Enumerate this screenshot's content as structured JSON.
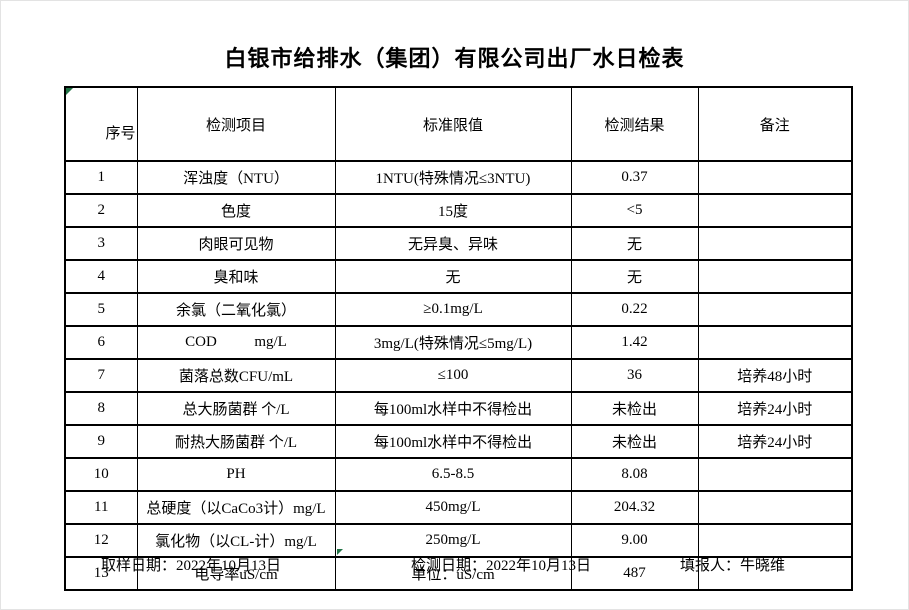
{
  "title": "白银市给排水（集团）有限公司出厂水日检表",
  "table": {
    "headers": [
      "序号",
      "检测项目",
      "标准限值",
      "检测结果",
      "备注"
    ],
    "rows": [
      [
        "1",
        "浑浊度（NTU）",
        "1NTU(特殊情况≤3NTU)",
        "0.37",
        ""
      ],
      [
        "2",
        "色度",
        "15度",
        "<5",
        ""
      ],
      [
        "3",
        "肉眼可见物",
        "无异臭、异味",
        "无",
        ""
      ],
      [
        "4",
        "臭和味",
        "无",
        "无",
        ""
      ],
      [
        "5",
        "余氯（二氧化氯）",
        "≥0.1mg/L",
        "0.22",
        ""
      ],
      [
        "6",
        "COD          mg/L",
        "3mg/L(特殊情况≤5mg/L)",
        "1.42",
        ""
      ],
      [
        "7",
        "菌落总数CFU/mL",
        "≤100",
        "36",
        "培养48小时"
      ],
      [
        "8",
        "总大肠菌群 个/L",
        "每100ml水样中不得检出",
        "未检出",
        "培养24小时"
      ],
      [
        "9",
        "耐热大肠菌群 个/L",
        "每100ml水样中不得检出",
        "未检出",
        "培养24小时"
      ],
      [
        "10",
        "PH",
        "6.5-8.5",
        "8.08",
        ""
      ],
      [
        "11",
        "总硬度（以CaCo3计）mg/L",
        "450mg/L",
        "204.32",
        ""
      ],
      [
        "12",
        "氯化物（以CL-计）mg/L",
        "250mg/L",
        "9.00",
        ""
      ],
      [
        "13",
        "电导率uS/cm",
        "单位：uS/cm",
        "487",
        ""
      ]
    ]
  },
  "footer": {
    "sample_date": "取样日期：2022年10月13日",
    "test_date": "检测日期：2022年10月13日",
    "reporter": "填报人：牛晓维"
  },
  "colors": {
    "flag_green": "#217346",
    "border_black": "#000000",
    "background": "#ffffff"
  }
}
